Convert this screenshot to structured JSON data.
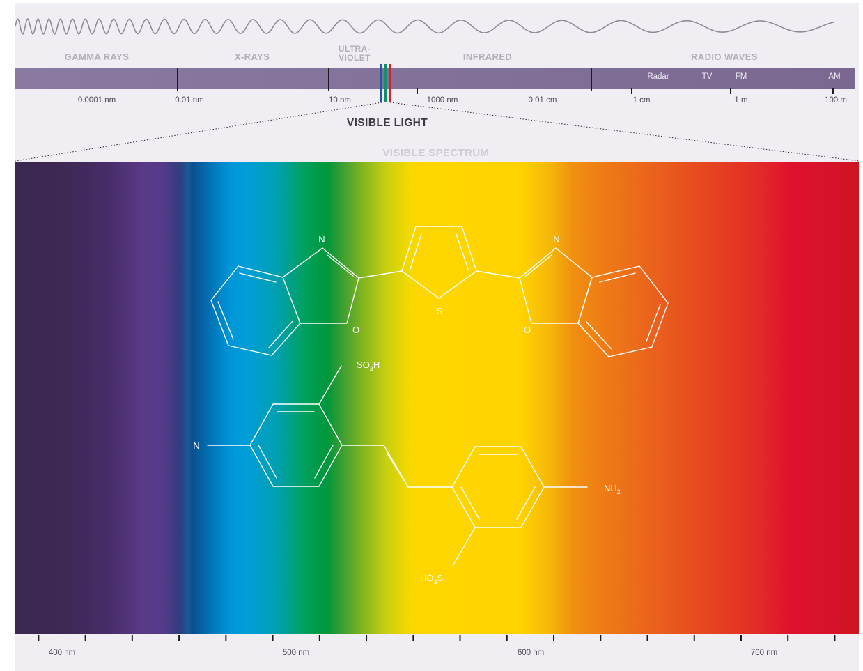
{
  "em_spectrum": {
    "categories": [
      "GAMMA RAYS",
      "X-RAYS",
      "ULTRA-",
      "VIOLET",
      "INFRARED",
      "RADIO WAVES"
    ],
    "wavelength_labels": [
      "0.0001 nm",
      "0.01 nm",
      "10 nm",
      "1000 nm",
      "0.01 cm",
      "1 cm",
      "1 m",
      "100 m"
    ],
    "radio_bands": [
      "Radar",
      "TV",
      "FM",
      "AM"
    ],
    "visible_light_label": "VISIBLE LIGHT",
    "visible_line_colors": [
      "#1e5aa8",
      "#11906a",
      "#d6202e"
    ]
  },
  "visible_spectrum": {
    "title": "VISIBLE SPECTRUM",
    "axis_labels": [
      "400 nm",
      "500 nm",
      "600 nm",
      "700 nm"
    ]
  },
  "molecules": {
    "top": {
      "atoms": [
        "N",
        "O",
        "S",
        "N",
        "O"
      ]
    },
    "bottom": {
      "atoms": [
        "N",
        "SO3H",
        "NH2",
        "HO3S"
      ]
    }
  },
  "colors": {
    "panel": "#f0eef3",
    "band": "#7d6b95",
    "wave": "#8e8a96"
  }
}
